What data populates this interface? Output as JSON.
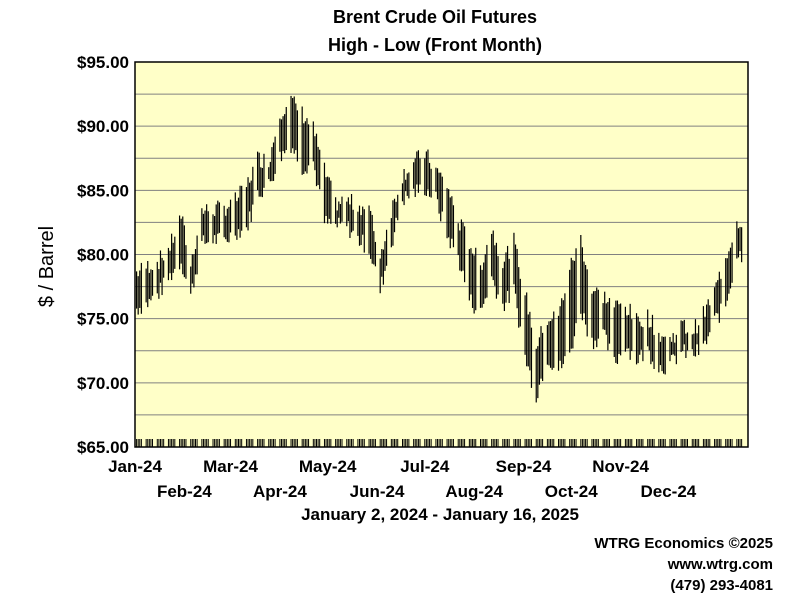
{
  "chart_data": {
    "type": "high-low",
    "title": "Brent Crude Oil Futures",
    "subtitle": "High - Low (Front Month)",
    "ylabel": "$ / Barrel",
    "ylim": [
      65,
      95
    ],
    "yticks": [
      "$65.00",
      "$70.00",
      "$75.00",
      "$80.00",
      "$85.00",
      "$90.00",
      "$95.00"
    ],
    "ytick_values": [
      65,
      70,
      75,
      80,
      85,
      90,
      95
    ],
    "xticks_top": [
      "Jan-24",
      "Mar-24",
      "May-24",
      "Jul-24",
      "Sep-24",
      "Nov-24"
    ],
    "xticks_bottom": [
      "Feb-24",
      "Apr-24",
      "Jun-24",
      "Aug-24",
      "Oct-24",
      "Dec-24"
    ],
    "xticks_top_dates": [
      "2024-01-01",
      "2024-03-01",
      "2024-05-01",
      "2024-07-01",
      "2024-09-01",
      "2024-11-01"
    ],
    "xticks_bottom_dates": [
      "2024-02-01",
      "2024-04-01",
      "2024-06-01",
      "2024-08-01",
      "2024-10-01",
      "2024-12-01"
    ],
    "xrange_label": "January 2, 2024 - January 16, 2025",
    "xlim": [
      "2024-01-01",
      "2025-01-20"
    ],
    "grid": true,
    "colors": {
      "plot_bg": "#ffffc8",
      "bars": "#000000",
      "grid": "#808080"
    },
    "series": [
      {
        "low": [
          [
            "2024-01-02",
            75.8,
            78.6
          ],
          [
            "2024-01-09",
            76.2,
            79.1
          ],
          [
            "2024-01-16",
            77.0,
            79.5
          ],
          [
            "2024-01-23",
            78.3,
            80.6
          ],
          [
            "2024-01-30",
            79.5,
            83.0
          ],
          [
            "2024-02-05",
            76.8,
            79.2
          ],
          [
            "2024-02-12",
            80.8,
            83.4
          ],
          [
            "2024-02-19",
            81.2,
            83.5
          ],
          [
            "2024-02-26",
            81.0,
            83.6
          ],
          [
            "2024-03-04",
            81.8,
            84.2
          ],
          [
            "2024-03-11",
            82.0,
            85.3
          ],
          [
            "2024-03-18",
            84.8,
            87.5
          ],
          [
            "2024-03-25",
            85.4,
            87.3
          ],
          [
            "2024-04-01",
            87.6,
            91.1
          ],
          [
            "2024-04-08",
            88.6,
            92.0
          ],
          [
            "2024-04-15",
            86.8,
            91.0
          ],
          [
            "2024-04-22",
            87.2,
            89.8
          ],
          [
            "2024-04-29",
            82.5,
            86.5
          ],
          [
            "2024-05-06",
            82.2,
            84.0
          ],
          [
            "2024-05-13",
            82.2,
            84.2
          ],
          [
            "2024-05-20",
            81.2,
            83.8
          ],
          [
            "2024-05-27",
            80.5,
            83.6
          ],
          [
            "2024-06-03",
            77.2,
            79.8
          ],
          [
            "2024-06-10",
            80.8,
            83.5
          ],
          [
            "2024-06-17",
            84.3,
            86.2
          ],
          [
            "2024-06-24",
            84.8,
            87.2
          ],
          [
            "2024-07-01",
            85.2,
            87.9
          ],
          [
            "2024-07-08",
            84.3,
            86.6
          ],
          [
            "2024-07-15",
            81.5,
            85.4
          ],
          [
            "2024-07-22",
            79.8,
            82.6
          ],
          [
            "2024-07-29",
            76.5,
            81.0
          ],
          [
            "2024-08-05",
            75.4,
            79.0
          ],
          [
            "2024-08-12",
            78.2,
            82.0
          ],
          [
            "2024-08-19",
            76.0,
            79.5
          ],
          [
            "2024-08-26",
            77.2,
            81.0
          ],
          [
            "2024-09-02",
            72.0,
            77.0
          ],
          [
            "2024-09-09",
            69.0,
            72.9
          ],
          [
            "2024-09-16",
            72.0,
            75.0
          ],
          [
            "2024-09-23",
            71.0,
            75.2
          ],
          [
            "2024-09-30",
            72.2,
            78.9
          ],
          [
            "2024-10-07",
            75.8,
            81.2
          ],
          [
            "2024-10-14",
            73.2,
            77.2
          ],
          [
            "2024-10-21",
            73.8,
            76.8
          ],
          [
            "2024-10-28",
            71.5,
            76.0
          ],
          [
            "2024-11-04",
            73.0,
            76.0
          ],
          [
            "2024-11-11",
            71.8,
            74.8
          ],
          [
            "2024-11-18",
            72.5,
            75.2
          ],
          [
            "2024-11-25",
            71.2,
            73.8
          ],
          [
            "2024-12-02",
            71.4,
            73.3
          ],
          [
            "2024-12-09",
            72.4,
            74.5
          ],
          [
            "2024-12-16",
            72.2,
            74.0
          ],
          [
            "2024-12-23",
            72.6,
            75.3
          ],
          [
            "2024-12-30",
            74.8,
            77.1
          ],
          [
            "2025-01-06",
            76.0,
            79.8
          ],
          [
            "2025-01-13",
            80.0,
            82.6
          ]
        ]
      }
    ]
  },
  "footer": {
    "line1": "WTRG Economics ©2025",
    "line2": "www.wtrg.com",
    "line3": "(479) 293-4081"
  }
}
